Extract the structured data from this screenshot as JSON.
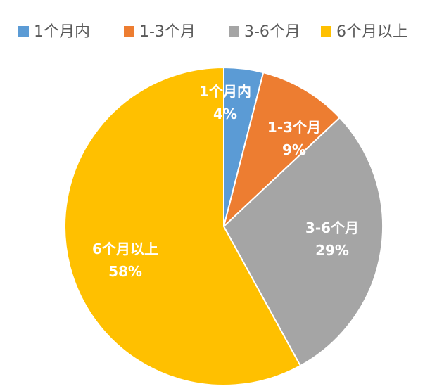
{
  "chart_data": {
    "type": "pie",
    "categories": [
      "1个月内",
      "1-3个月",
      "3-6个月",
      "6个月以上"
    ],
    "values": [
      4,
      9,
      29,
      58
    ],
    "value_labels": [
      "4%",
      "9%",
      "29%",
      "58%"
    ],
    "colors": [
      "#5B9BD5",
      "#ED7D31",
      "#A5A5A5",
      "#FFC000"
    ],
    "legend_position": "top",
    "start_angle_deg": 0,
    "direction": "clockwise"
  }
}
